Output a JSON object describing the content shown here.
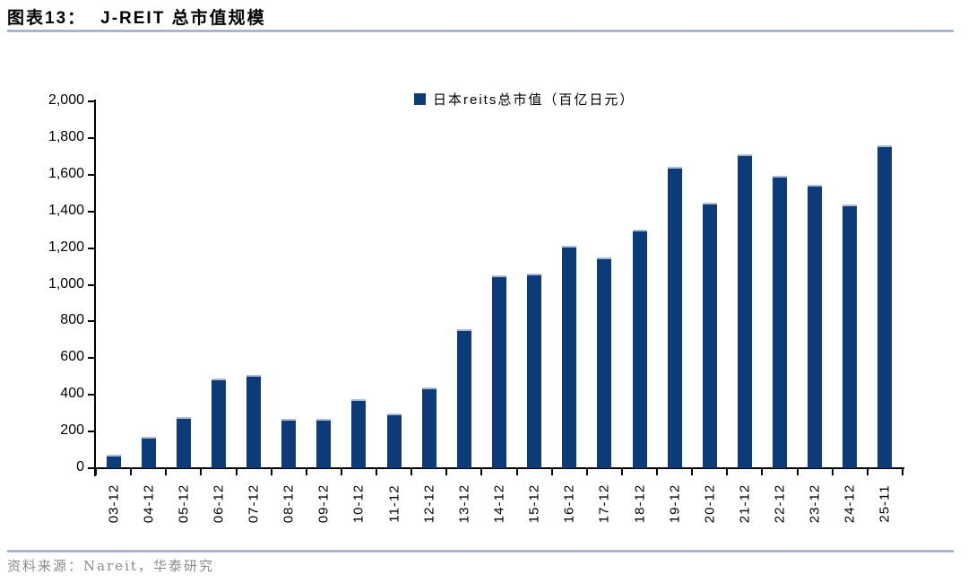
{
  "figure": {
    "label": "图表13：",
    "title": "J-REIT 总市值规模"
  },
  "legend": {
    "label": "日本reits总市值（百亿日元）"
  },
  "footer": {
    "source": "资料来源：Nareit，华泰研究"
  },
  "colors": {
    "bar": "#0d3b7a",
    "bar_top_edge": "#aabdd5",
    "axis": "#000000",
    "rule": "#8ba2c1",
    "footer_text": "#8a8a8a"
  },
  "chart_data": {
    "type": "bar",
    "title": "J-REIT 总市值规模",
    "legend_entries": [
      "日本reits总市值（百亿日元）"
    ],
    "legend_position": "top-center",
    "unit": "百亿日元",
    "categories": [
      "03-12",
      "04-12",
      "05-12",
      "06-12",
      "07-12",
      "08-12",
      "09-12",
      "10-12",
      "11-12",
      "12-12",
      "13-12",
      "14-12",
      "15-12",
      "16-12",
      "17-12",
      "18-12",
      "19-12",
      "20-12",
      "21-12",
      "22-12",
      "23-12",
      "24-12",
      "25-11"
    ],
    "values": [
      75,
      170,
      280,
      490,
      510,
      270,
      268,
      375,
      300,
      440,
      760,
      1050,
      1060,
      1215,
      1150,
      1300,
      1645,
      1448,
      1710,
      1595,
      1545,
      1440,
      1760
    ],
    "xlabel": "",
    "ylabel": "",
    "ylim": [
      0,
      2000
    ],
    "ytick_step": 200,
    "ytick_labels": [
      "0",
      "200",
      "400",
      "600",
      "800",
      "1,000",
      "1,200",
      "1,400",
      "1,600",
      "1,800",
      "2,000"
    ],
    "grid": false
  }
}
